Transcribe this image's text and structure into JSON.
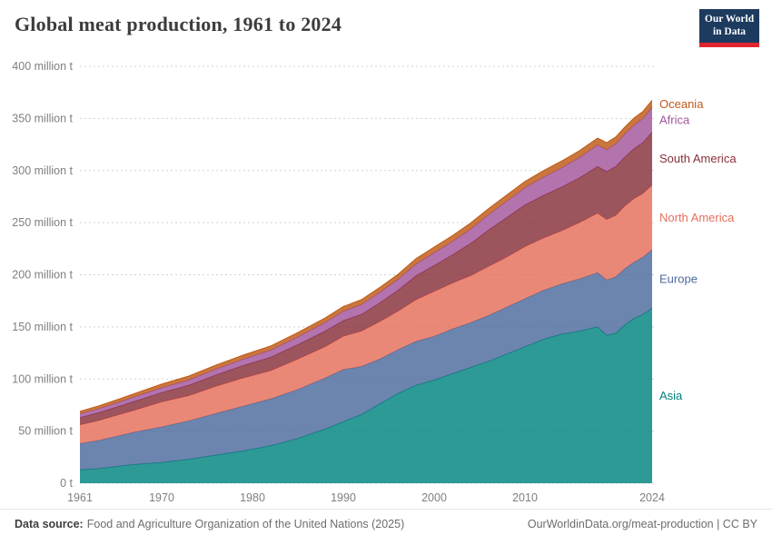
{
  "header": {
    "title": "Global meat production, 1961 to 2024",
    "logo": {
      "line1": "Our World",
      "line2": "in Data",
      "bg_color": "#1d3a5f",
      "accent_color": "#e0242e"
    }
  },
  "footer": {
    "source_label": "Data source:",
    "source_text": "Food and Agriculture Organization of the United Nations (2025)",
    "right_text": "OurWorldinData.org/meat-production | CC BY"
  },
  "chart_data": {
    "type": "area",
    "stacked": true,
    "title": "Global meat production, 1961 to 2024",
    "unit": "million t",
    "grid": "horizontal-dashed",
    "legend_position": "right-edge-labels",
    "xlim": [
      1961,
      2024
    ],
    "ylim": [
      0,
      400
    ],
    "xticks": [
      1961,
      1970,
      1980,
      1990,
      2000,
      2010,
      2024
    ],
    "yticks": [
      0,
      50,
      100,
      150,
      200,
      250,
      300,
      350,
      400
    ],
    "ytick_labels": [
      "0 t",
      "50 million t",
      "100 million t",
      "150 million t",
      "200 million t",
      "250 million t",
      "300 million t",
      "350 million t",
      "400 million t"
    ],
    "x": [
      1961,
      1963,
      1965,
      1967,
      1970,
      1973,
      1976,
      1979,
      1982,
      1985,
      1988,
      1990,
      1992,
      1994,
      1996,
      1998,
      2000,
      2002,
      2004,
      2006,
      2008,
      2010,
      2012,
      2014,
      2016,
      2018,
      2019,
      2020,
      2021,
      2022,
      2023,
      2024
    ],
    "series": [
      {
        "name": "Asia",
        "color": "#00847E",
        "values": [
          13,
          14,
          16,
          18,
          20,
          23,
          27,
          31,
          36,
          43,
          52,
          59,
          66,
          76,
          86,
          94,
          99,
          105,
          111,
          117,
          124,
          131,
          138,
          143,
          146,
          150,
          142,
          144,
          152,
          158,
          162,
          168
        ]
      },
      {
        "name": "Europe",
        "color": "#4C6A9C",
        "values": [
          25,
          27,
          29,
          31,
          34,
          37,
          40,
          43,
          45,
          47,
          49,
          50,
          46,
          43,
          42,
          42,
          42,
          43,
          43,
          44,
          45,
          46,
          47,
          48,
          50,
          52,
          53,
          54,
          54,
          54,
          55,
          56
        ]
      },
      {
        "name": "North America",
        "color": "#E56E5A",
        "values": [
          18,
          19,
          20,
          21,
          24,
          24,
          26,
          27,
          27,
          29,
          30,
          32,
          34,
          36,
          37,
          40,
          43,
          44,
          45,
          47,
          48,
          50,
          50,
          51,
          54,
          57,
          58,
          59,
          60,
          61,
          61,
          62
        ]
      },
      {
        "name": "South America",
        "color": "#883039",
        "values": [
          7,
          7.5,
          8,
          8.5,
          9,
          10,
          11,
          12,
          13,
          14,
          15,
          15,
          16,
          18,
          20,
          23,
          25,
          27,
          31,
          35,
          38,
          40,
          41,
          42,
          43,
          45,
          46,
          47,
          47,
          48,
          49,
          51
        ]
      },
      {
        "name": "Africa",
        "color": "#A2559C",
        "values": [
          3.5,
          3.8,
          4,
          4.3,
          4.6,
          5,
          5.5,
          6,
          6.7,
          7.4,
          8.2,
          9,
          9.5,
          10,
          10.5,
          11.2,
          12,
          12.8,
          13.7,
          14.6,
          15.6,
          16.5,
          17.5,
          18.5,
          19.5,
          20.5,
          21,
          21.5,
          22,
          22.5,
          23,
          23.5
        ]
      },
      {
        "name": "Oceania",
        "color": "#BE5915",
        "values": [
          2.5,
          2.7,
          2.9,
          3.1,
          3.5,
          3.8,
          4,
          4,
          4,
          4.2,
          4.3,
          4.5,
          4.6,
          4.7,
          4.8,
          5.2,
          5.5,
          5.7,
          5.8,
          5.9,
          5.9,
          6,
          6.2,
          6.4,
          6.5,
          6.6,
          6.7,
          6.7,
          6.7,
          6.8,
          6.8,
          6.9
        ]
      }
    ]
  }
}
